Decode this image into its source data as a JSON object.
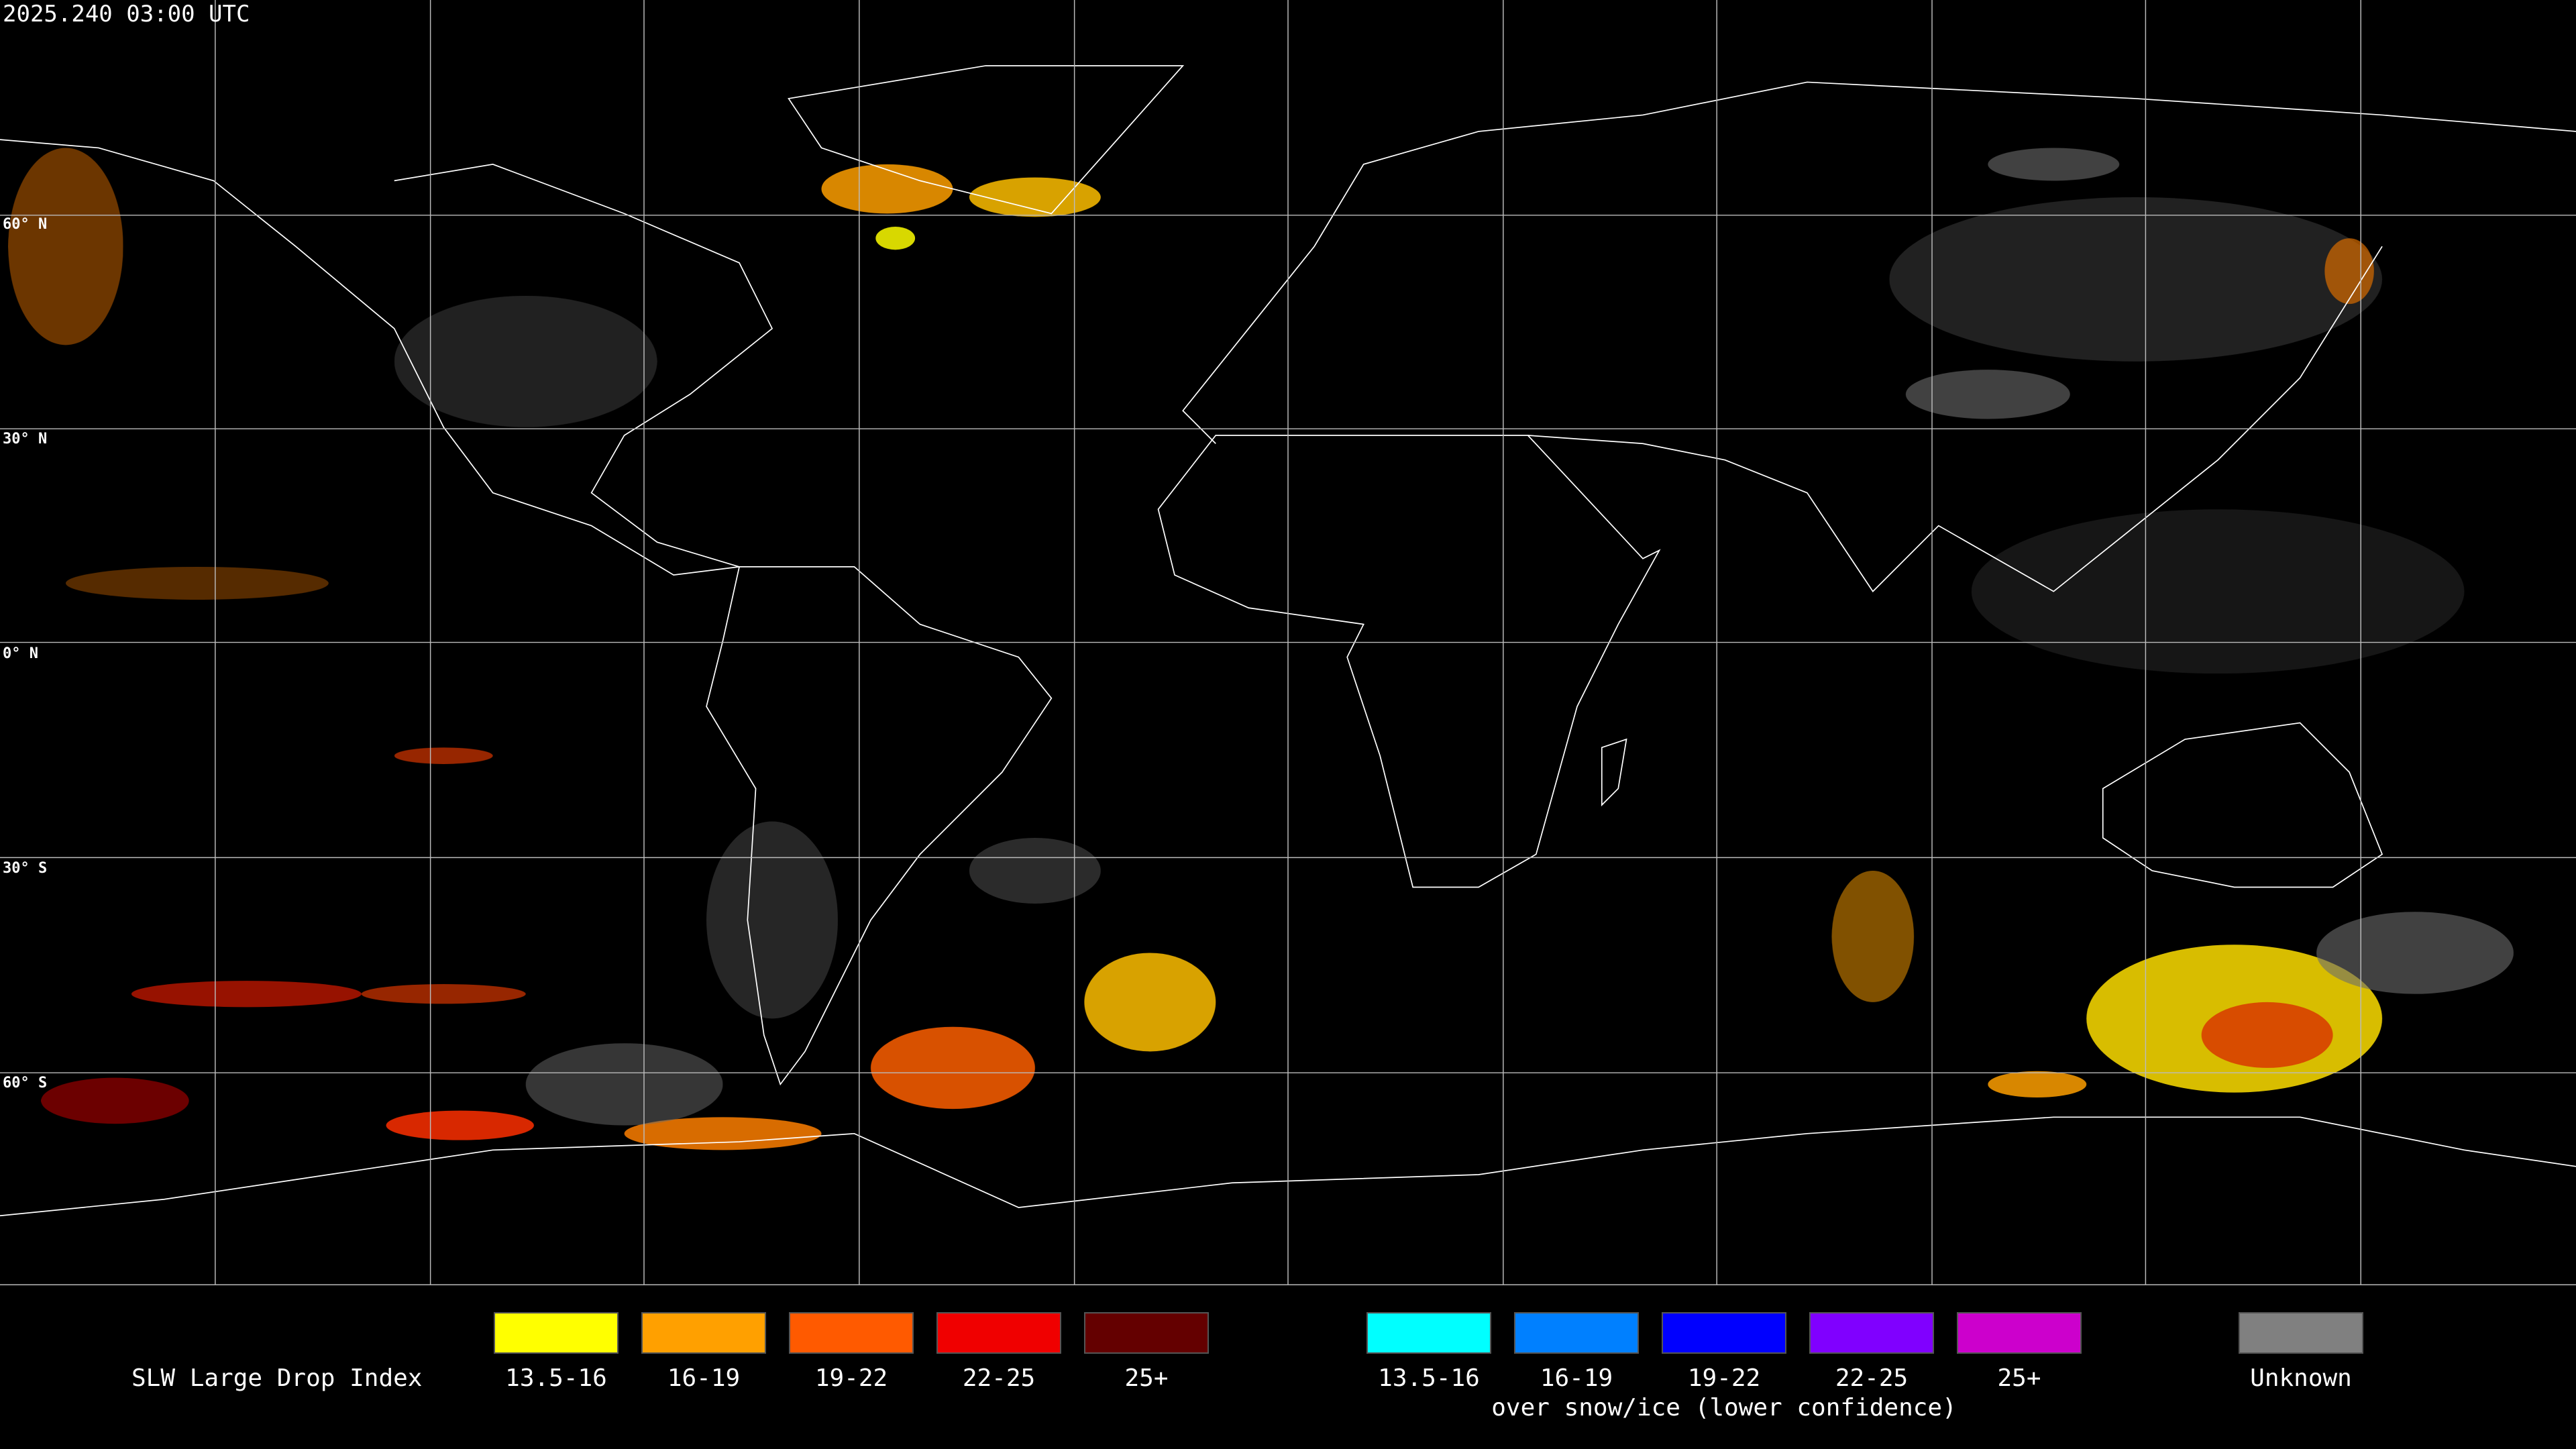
{
  "header": {
    "timestamp": "2025.240 03:00 UTC"
  },
  "map": {
    "latitude_labels": [
      "60° N",
      "30° N",
      "0° N",
      "30° S",
      "60° S"
    ]
  },
  "legend": {
    "title": "SLW Large Drop Index",
    "groups": [
      {
        "items": [
          {
            "label": "13.5-16",
            "color": "#ffff00"
          },
          {
            "label": "16-19",
            "color": "#ffa000"
          },
          {
            "label": "19-22",
            "color": "#ff5a00"
          },
          {
            "label": "22-25",
            "color": "#f00000"
          },
          {
            "label": "25+",
            "color": "#640000"
          }
        ]
      },
      {
        "items": [
          {
            "label": "13.5-16",
            "color": "#00ffff"
          },
          {
            "label": "16-19",
            "color": "#0080ff"
          },
          {
            "label": "19-22",
            "color": "#0000ff"
          },
          {
            "label": "22-25",
            "color": "#8000ff"
          },
          {
            "label": "25+",
            "color": "#cc00cc"
          }
        ],
        "caption": "over snow/ice (lower confidence)"
      },
      {
        "items": [
          {
            "label": "Unknown",
            "color": "#808080"
          }
        ]
      }
    ]
  }
}
